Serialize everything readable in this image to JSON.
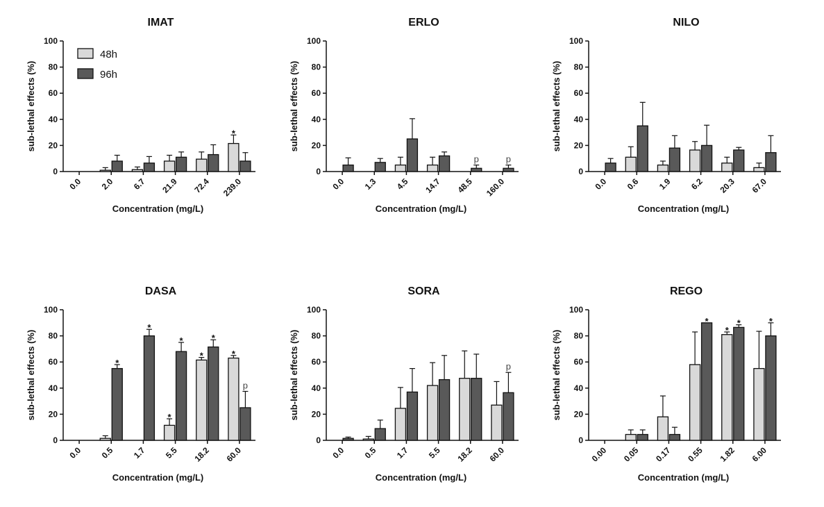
{
  "colors": {
    "s48": "#d9d9d9",
    "s96": "#595959",
    "stroke": "#111111"
  },
  "legend": {
    "items": [
      "48h",
      "96h"
    ]
  },
  "chart_data": [
    {
      "type": "bar",
      "title": "IMAT",
      "xlabel": "Concentration (mg/L)",
      "ylabel": "sub-lethal effects (%)",
      "ylim": [
        0,
        100
      ],
      "yticks": [
        0,
        20,
        40,
        60,
        80,
        100
      ],
      "categories": [
        "0.0",
        "2.0",
        "6.7",
        "21.9",
        "72.4",
        "239.0"
      ],
      "series": [
        {
          "name": "48h",
          "values": [
            0,
            1,
            1.5,
            8,
            9.5,
            21.5
          ],
          "errors": [
            0,
            2,
            2,
            4.5,
            5.5,
            6.5
          ],
          "marks": [
            "",
            "",
            "",
            "",
            "",
            "*"
          ]
        },
        {
          "name": "96h",
          "values": [
            0,
            8,
            6.5,
            11,
            13,
            8
          ],
          "errors": [
            0,
            4.5,
            5,
            4,
            7.5,
            6.5
          ],
          "marks": [
            "",
            "",
            "",
            "",
            "",
            ""
          ]
        }
      ]
    },
    {
      "type": "bar",
      "title": "ERLO",
      "xlabel": "Concentration (mg/L)",
      "ylabel": "sub-lethal effects (%)",
      "ylim": [
        0,
        100
      ],
      "yticks": [
        0,
        20,
        40,
        60,
        80,
        100
      ],
      "categories": [
        "0.0",
        "1.3",
        "4.5",
        "14.7",
        "48.5",
        "160.0"
      ],
      "series": [
        {
          "name": "48h",
          "values": [
            0,
            0,
            5,
            5,
            0,
            0
          ],
          "errors": [
            0,
            0,
            6,
            6,
            0,
            0
          ],
          "marks": [
            "",
            "",
            "",
            "",
            "",
            ""
          ]
        },
        {
          "name": "96h",
          "values": [
            5,
            7,
            25,
            12,
            2.5,
            2.5
          ],
          "errors": [
            5.5,
            3,
            15.5,
            3,
            2.5,
            2.5
          ],
          "marks": [
            "",
            "",
            "",
            "",
            "p",
            "p"
          ]
        }
      ]
    },
    {
      "type": "bar",
      "title": "NILO",
      "xlabel": "Concentration (mg/L)",
      "ylabel": "sub-lethal effects (%)",
      "ylim": [
        0,
        100
      ],
      "yticks": [
        0,
        20,
        40,
        60,
        80,
        100
      ],
      "categories": [
        "0.0",
        "0.6",
        "1.9",
        "6.2",
        "20.3",
        "67.0"
      ],
      "series": [
        {
          "name": "48h",
          "values": [
            0,
            11,
            5,
            16.5,
            6.5,
            3
          ],
          "errors": [
            0,
            8,
            3,
            6.5,
            4.5,
            3.5
          ],
          "marks": [
            "",
            "",
            "",
            "",
            "",
            ""
          ]
        },
        {
          "name": "96h",
          "values": [
            6.5,
            35,
            18,
            20,
            16.5,
            14.5
          ],
          "errors": [
            3.5,
            18,
            9.5,
            15.5,
            2,
            13
          ],
          "marks": [
            "",
            "",
            "",
            "",
            "",
            ""
          ]
        }
      ]
    },
    {
      "type": "bar",
      "title": "DASA",
      "xlabel": "Concentration (mg/L)",
      "ylabel": "sub-lethal effects (%)",
      "ylim": [
        0,
        100
      ],
      "yticks": [
        0,
        20,
        40,
        60,
        80,
        100
      ],
      "categories": [
        "0.0",
        "0.5",
        "1.7",
        "5.5",
        "18.2",
        "60.0"
      ],
      "series": [
        {
          "name": "48h",
          "values": [
            0,
            1.5,
            0,
            11.5,
            61.5,
            63
          ],
          "errors": [
            0,
            2,
            0,
            5,
            2,
            2
          ],
          "marks": [
            "",
            "",
            "",
            "*",
            "*",
            "*"
          ]
        },
        {
          "name": "96h",
          "values": [
            0,
            55,
            80,
            68,
            71.5,
            25
          ],
          "errors": [
            0,
            3,
            5,
            7,
            5.5,
            12.5
          ],
          "marks": [
            "",
            "*",
            "*",
            "*",
            "*",
            "p"
          ]
        }
      ]
    },
    {
      "type": "bar",
      "title": "SORA",
      "xlabel": "Concentration (mg/L)",
      "ylabel": "sub-lethal effects (%)",
      "ylim": [
        0,
        100
      ],
      "yticks": [
        0,
        20,
        40,
        60,
        80,
        100
      ],
      "categories": [
        "0.0",
        "0.5",
        "1.7",
        "5.5",
        "18.2",
        "60.0"
      ],
      "series": [
        {
          "name": "48h",
          "values": [
            0,
            1,
            24.5,
            42,
            47.5,
            27
          ],
          "errors": [
            0,
            2,
            16,
            17.5,
            21,
            18
          ],
          "marks": [
            "",
            "",
            "",
            "",
            "",
            ""
          ]
        },
        {
          "name": "96h",
          "values": [
            1.5,
            9,
            37,
            46.5,
            47.5,
            36.5
          ],
          "errors": [
            1,
            6.5,
            18,
            18.5,
            18.5,
            15.5
          ],
          "marks": [
            "",
            "",
            "",
            "",
            "",
            "p"
          ]
        }
      ]
    },
    {
      "type": "bar",
      "title": "REGO",
      "xlabel": "Concentration (mg/L)",
      "ylabel": "sub-lethal effects (%)",
      "ylim": [
        0,
        100
      ],
      "yticks": [
        0,
        20,
        40,
        60,
        80,
        100
      ],
      "categories": [
        "0.00",
        "0.05",
        "0.17",
        "0.55",
        "1.82",
        "6.00"
      ],
      "series": [
        {
          "name": "48h",
          "values": [
            0,
            4.5,
            18,
            58,
            81,
            55
          ],
          "errors": [
            0,
            3.5,
            16,
            25,
            2,
            28.5
          ],
          "marks": [
            "",
            "",
            "",
            "",
            "*",
            ""
          ]
        },
        {
          "name": "96h",
          "values": [
            0,
            4.5,
            4.5,
            90,
            86.5,
            80
          ],
          "errors": [
            0,
            3.5,
            5.5,
            0,
            2,
            10
          ],
          "marks": [
            "",
            "",
            "",
            "*",
            "*",
            "*"
          ]
        }
      ]
    }
  ]
}
